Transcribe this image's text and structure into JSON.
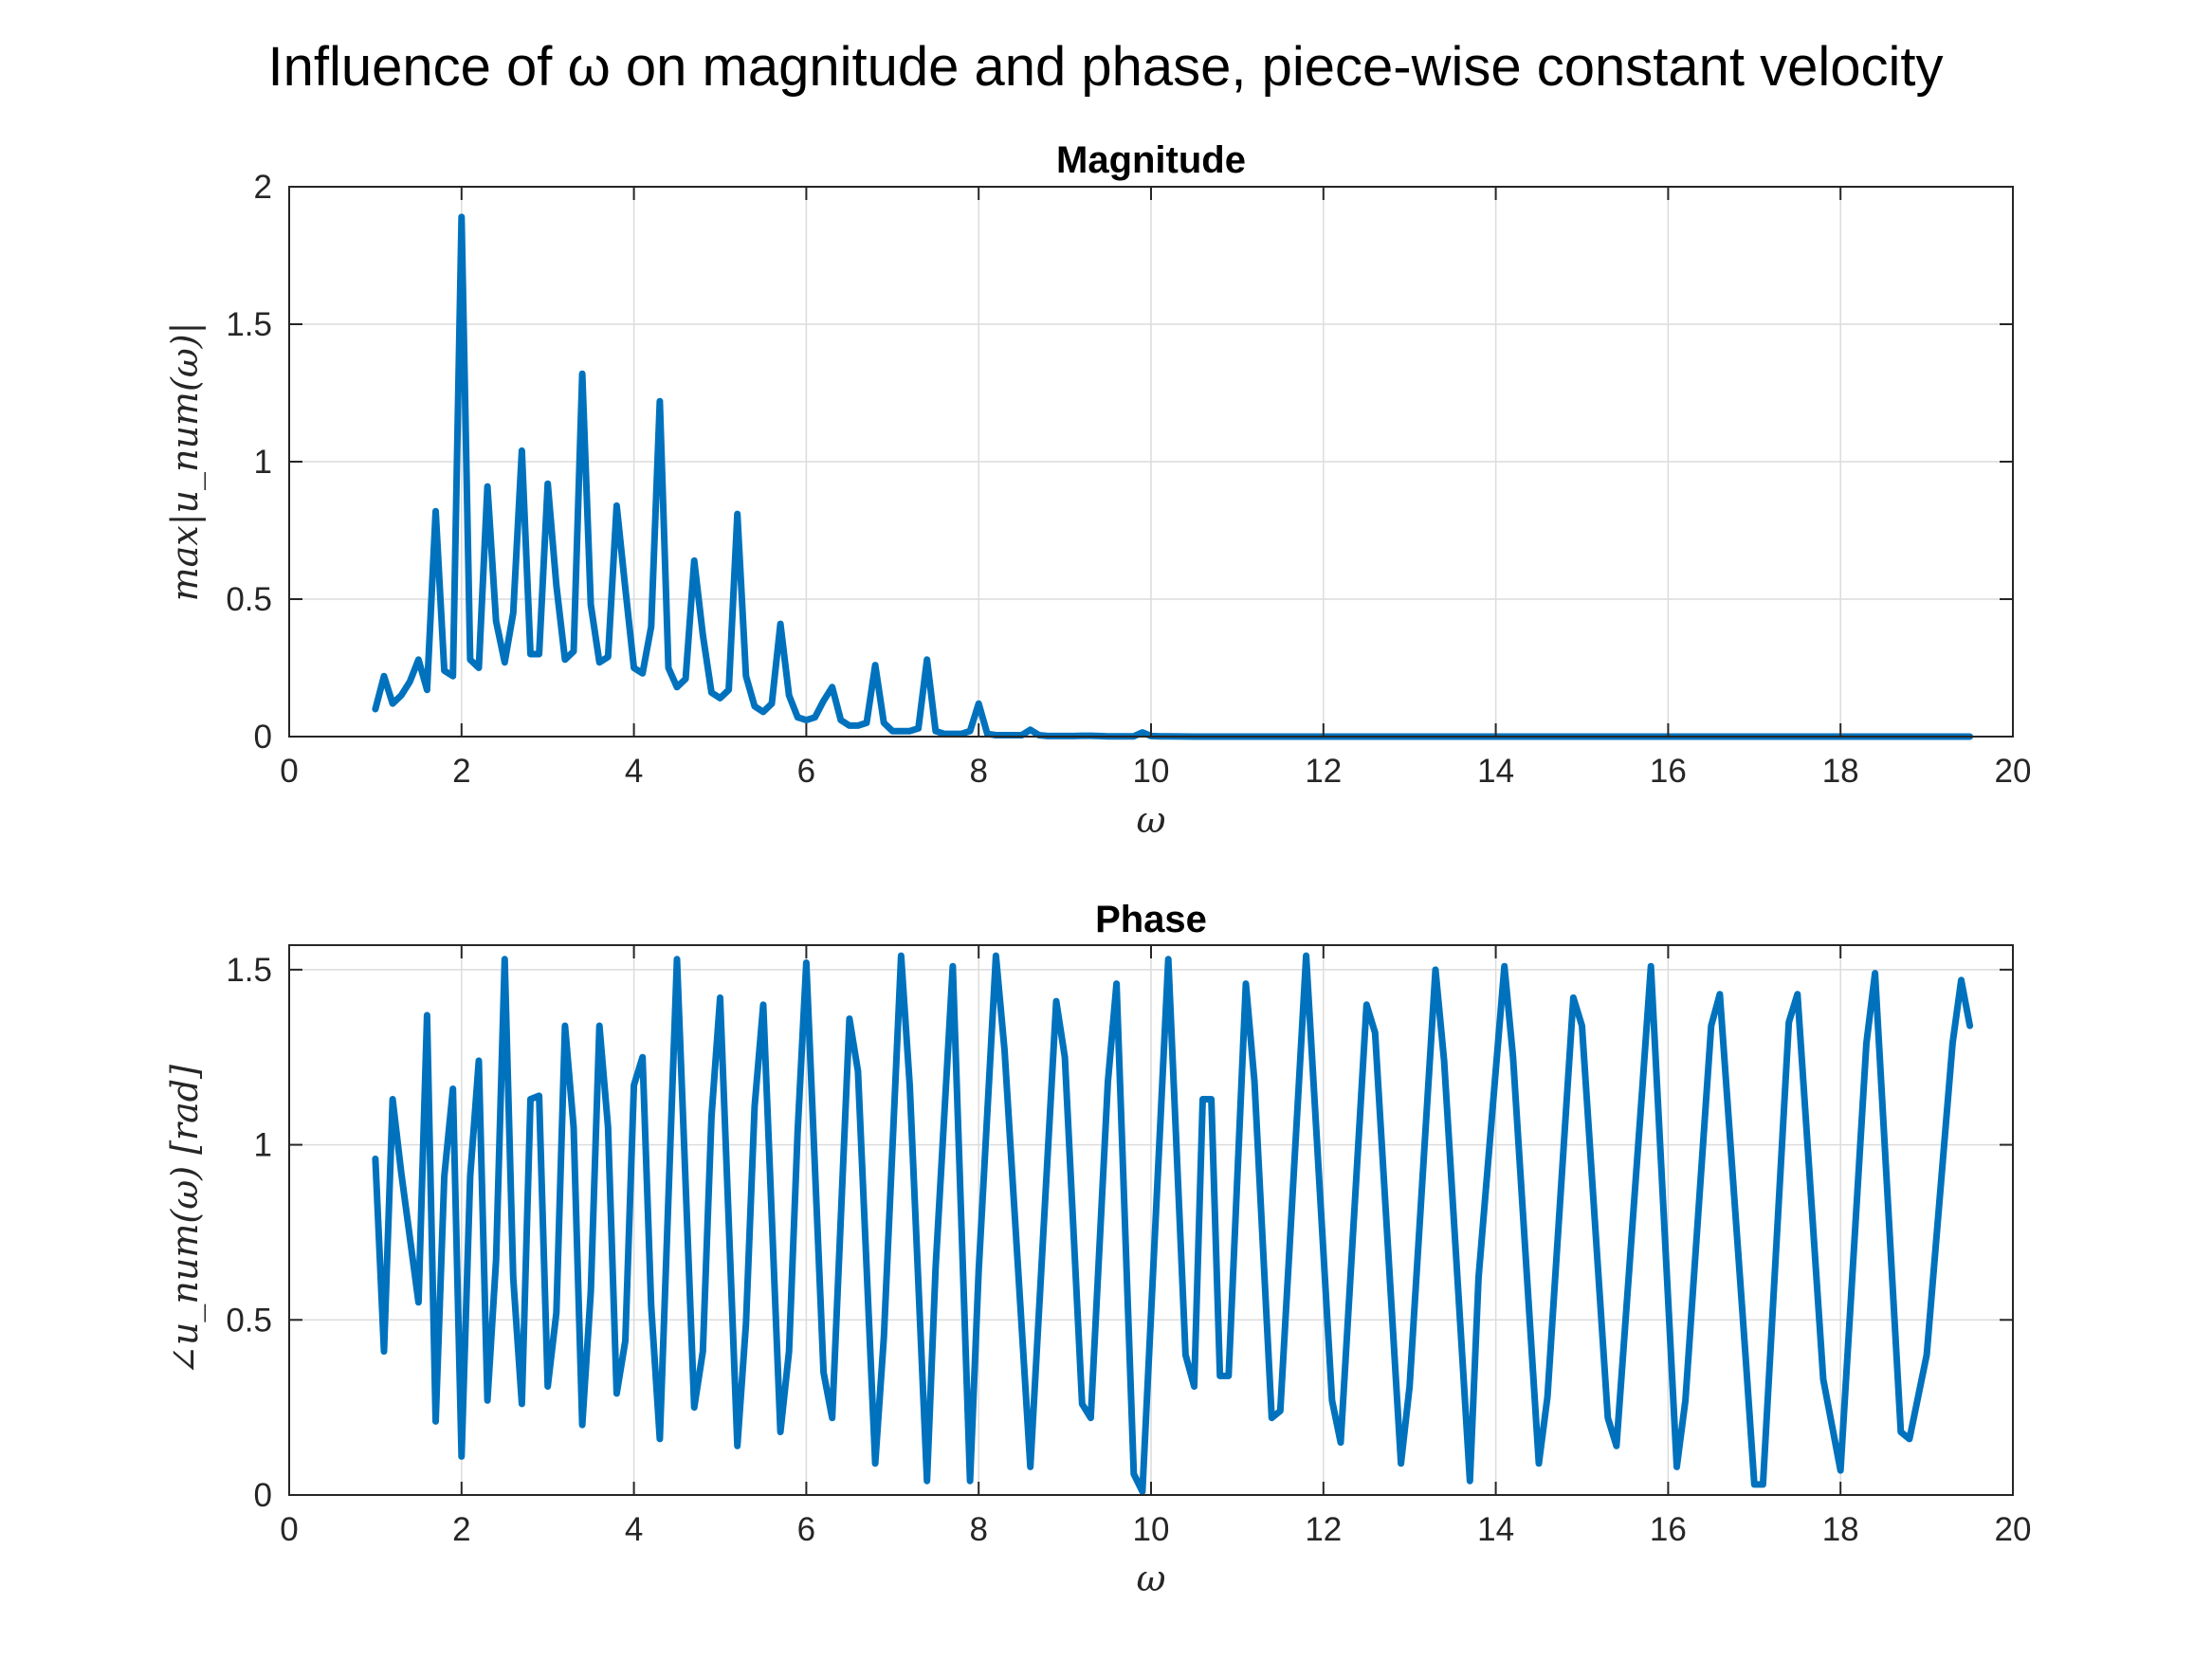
{
  "figure_title": "Influence of ω on magnitude and phase, piece-wise constant velocity",
  "colors": {
    "series": "#0072BD",
    "axes": "#262626",
    "grid": "#dcdcdc"
  },
  "chart_data": [
    {
      "type": "line",
      "title": "Magnitude",
      "xlabel": "ω",
      "ylabel": "max|u_num(ω)|",
      "xlim": [
        0,
        20
      ],
      "ylim": [
        0,
        2
      ],
      "xticks": [
        0,
        2,
        4,
        6,
        8,
        10,
        12,
        14,
        16,
        18,
        20
      ],
      "yticks": [
        0,
        0.5,
        1,
        1.5,
        2
      ],
      "xtick_labels": [
        "0",
        "2",
        "4",
        "6",
        "8",
        "10",
        "12",
        "14",
        "16",
        "18",
        "20"
      ],
      "ytick_labels": [
        "0",
        "0.5",
        "1",
        "1.5",
        "2"
      ],
      "grid": true,
      "x": [
        1.0,
        1.1,
        1.2,
        1.3,
        1.4,
        1.5,
        1.6,
        1.7,
        1.8,
        1.9,
        2.0,
        2.1,
        2.2,
        2.3,
        2.4,
        2.5,
        2.6,
        2.7,
        2.8,
        2.9,
        3.0,
        3.1,
        3.2,
        3.3,
        3.4,
        3.5,
        3.6,
        3.7,
        3.8,
        3.9,
        4.0,
        4.1,
        4.2,
        4.3,
        4.4,
        4.5,
        4.6,
        4.7,
        4.8,
        4.9,
        5.0,
        5.1,
        5.2,
        5.3,
        5.4,
        5.5,
        5.6,
        5.7,
        5.8,
        5.9,
        6.0,
        6.1,
        6.2,
        6.3,
        6.4,
        6.5,
        6.6,
        6.7,
        6.8,
        6.9,
        7.0,
        7.1,
        7.2,
        7.3,
        7.4,
        7.5,
        7.6,
        7.7,
        7.8,
        7.9,
        8.0,
        8.1,
        8.2,
        8.3,
        8.4,
        8.5,
        8.6,
        8.7,
        8.8,
        8.9,
        9.0,
        9.1,
        9.2,
        9.3,
        9.4,
        9.5,
        9.6,
        9.7,
        9.8,
        9.9,
        10.0,
        10.1,
        10.2,
        10.5,
        11.0,
        12.0,
        13.0,
        14.0,
        15.0,
        16.0,
        17.0,
        18.0,
        19.0,
        19.5
      ],
      "y": [
        0.1,
        0.22,
        0.12,
        0.15,
        0.2,
        0.28,
        0.17,
        0.82,
        0.24,
        0.22,
        1.89,
        0.28,
        0.25,
        0.91,
        0.42,
        0.27,
        0.45,
        1.04,
        0.3,
        0.3,
        0.92,
        0.55,
        0.28,
        0.31,
        1.32,
        0.48,
        0.27,
        0.29,
        0.84,
        0.54,
        0.25,
        0.23,
        0.4,
        1.22,
        0.25,
        0.18,
        0.21,
        0.64,
        0.37,
        0.16,
        0.14,
        0.17,
        0.81,
        0.22,
        0.11,
        0.09,
        0.12,
        0.41,
        0.15,
        0.07,
        0.06,
        0.07,
        0.13,
        0.18,
        0.06,
        0.04,
        0.04,
        0.05,
        0.26,
        0.05,
        0.02,
        0.02,
        0.02,
        0.03,
        0.28,
        0.02,
        0.01,
        0.01,
        0.01,
        0.02,
        0.12,
        0.01,
        0.005,
        0.005,
        0.005,
        0.005,
        0.025,
        0.005,
        0.002,
        0.002,
        0.002,
        0.002,
        0.003,
        0.003,
        0.002,
        0.001,
        0.001,
        0.001,
        0.001,
        0.015,
        0.002,
        0.001,
        0.001,
        0.0,
        0.0,
        0.0,
        0.0,
        0.0,
        0.0,
        0.0,
        0.0,
        0.0,
        0.0,
        0.0
      ]
    },
    {
      "type": "line",
      "title": "Phase",
      "xlabel": "ω",
      "ylabel": "∠u_num(ω) [rad]",
      "xlim": [
        0,
        20
      ],
      "ylim": [
        0,
        1.57
      ],
      "xticks": [
        0,
        2,
        4,
        6,
        8,
        10,
        12,
        14,
        16,
        18,
        20
      ],
      "yticks": [
        0,
        0.5,
        1,
        1.5
      ],
      "xtick_labels": [
        "0",
        "2",
        "4",
        "6",
        "8",
        "10",
        "12",
        "14",
        "16",
        "18",
        "20"
      ],
      "ytick_labels": [
        "0",
        "0.5",
        "1",
        "1.5"
      ],
      "grid": true,
      "x": [
        1.0,
        1.1,
        1.2,
        1.3,
        1.5,
        1.6,
        1.7,
        1.8,
        1.9,
        2.0,
        2.1,
        2.2,
        2.3,
        2.4,
        2.5,
        2.6,
        2.7,
        2.8,
        2.9,
        3.0,
        3.1,
        3.2,
        3.3,
        3.4,
        3.5,
        3.6,
        3.7,
        3.8,
        3.9,
        4.0,
        4.1,
        4.2,
        4.3,
        4.5,
        4.7,
        4.8,
        4.9,
        5.0,
        5.2,
        5.3,
        5.4,
        5.5,
        5.7,
        5.8,
        5.9,
        6.0,
        6.2,
        6.3,
        6.5,
        6.6,
        6.8,
        6.9,
        7.1,
        7.2,
        7.4,
        7.5,
        7.7,
        7.9,
        8.0,
        8.2,
        8.3,
        8.6,
        8.9,
        9.0,
        9.2,
        9.3,
        9.5,
        9.6,
        9.8,
        9.9,
        10.2,
        10.4,
        10.5,
        10.6,
        10.7,
        10.8,
        10.9,
        11.1,
        11.2,
        11.4,
        11.5,
        11.8,
        12.1,
        12.2,
        12.5,
        12.6,
        12.9,
        13.0,
        13.3,
        13.4,
        13.7,
        13.8,
        14.1,
        14.2,
        14.5,
        14.6,
        14.9,
        15.0,
        15.3,
        15.4,
        15.7,
        15.8,
        16.1,
        16.2,
        16.5,
        16.6,
        16.9,
        17.0,
        17.1,
        17.4,
        17.5,
        17.8,
        18.0,
        18.3,
        18.4,
        18.7,
        18.8,
        19.0,
        19.3,
        19.4,
        19.5
      ],
      "y": [
        0.96,
        0.41,
        1.13,
        0.92,
        0.55,
        1.37,
        0.21,
        0.91,
        1.16,
        0.11,
        0.91,
        1.24,
        0.27,
        0.67,
        1.53,
        0.62,
        0.26,
        1.13,
        1.14,
        0.31,
        0.52,
        1.34,
        1.05,
        0.2,
        0.58,
        1.34,
        1.05,
        0.29,
        0.44,
        1.17,
        1.25,
        0.54,
        0.16,
        1.53,
        0.25,
        0.41,
        1.08,
        1.42,
        0.14,
        0.49,
        1.11,
        1.4,
        0.18,
        0.41,
        1.04,
        1.52,
        0.35,
        0.22,
        1.36,
        1.21,
        0.09,
        0.45,
        1.54,
        1.17,
        0.04,
        0.65,
        1.51,
        0.04,
        0.64,
        1.54,
        1.27,
        0.08,
        1.41,
        1.25,
        0.26,
        0.22,
        1.18,
        1.46,
        0.06,
        0.01,
        1.53,
        0.4,
        0.31,
        1.13,
        1.13,
        0.34,
        0.34,
        1.46,
        1.18,
        0.22,
        0.24,
        1.54,
        0.27,
        0.15,
        1.4,
        1.32,
        0.09,
        0.31,
        1.5,
        1.24,
        0.04,
        0.62,
        1.51,
        1.25,
        0.09,
        0.28,
        1.42,
        1.34,
        0.22,
        0.14,
        1.16,
        1.51,
        0.08,
        0.27,
        1.34,
        1.43,
        0.39,
        0.03,
        0.03,
        1.35,
        1.43,
        0.33,
        0.07,
        1.29,
        1.49,
        0.18,
        0.16,
        0.4,
        1.29,
        1.47,
        1.34
      ]
    }
  ]
}
